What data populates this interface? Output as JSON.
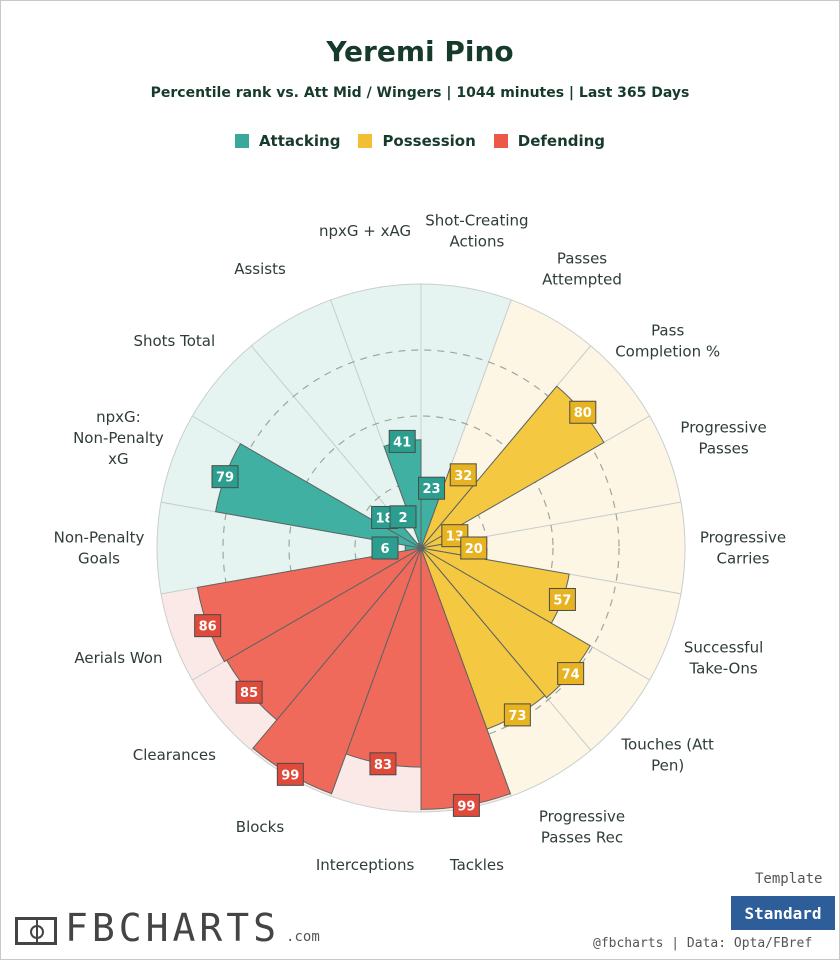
{
  "header": {
    "title": "Yeremi Pino",
    "subtitle": "Percentile rank vs. Att Mid / Wingers | 1044 minutes | Last 365 Days"
  },
  "legend": [
    {
      "label": "Attacking",
      "color": "#3aa99b"
    },
    {
      "label": "Possession",
      "color": "#f2bf33"
    },
    {
      "label": "Defending",
      "color": "#ee5648"
    }
  ],
  "chart_data": {
    "type": "polar-bar",
    "title": "Yeremi Pino",
    "rlim": [
      0,
      100
    ],
    "rings": [
      25,
      50,
      75
    ],
    "categories": [
      {
        "label": "Shot-Creating Actions",
        "value": 23,
        "group": "Attacking"
      },
      {
        "label": "Passes Attempted",
        "value": 32,
        "group": "Possession"
      },
      {
        "label": "Pass Completion %",
        "value": 80,
        "group": "Possession"
      },
      {
        "label": "Progressive Passes",
        "value": 13,
        "group": "Possession"
      },
      {
        "label": "Progressive Carries",
        "value": 20,
        "group": "Possession"
      },
      {
        "label": "Successful Take-Ons",
        "value": 57,
        "group": "Possession"
      },
      {
        "label": "Touches (Att Pen)",
        "value": 74,
        "group": "Possession"
      },
      {
        "label": "Progressive Passes Rec",
        "value": 73,
        "group": "Possession"
      },
      {
        "label": "Tackles",
        "value": 99,
        "group": "Defending"
      },
      {
        "label": "Interceptions",
        "value": 83,
        "group": "Defending"
      },
      {
        "label": "Blocks",
        "value": 99,
        "group": "Defending"
      },
      {
        "label": "Clearances",
        "value": 85,
        "group": "Defending"
      },
      {
        "label": "Aerials Won",
        "value": 86,
        "group": "Defending"
      },
      {
        "label": "Non-Penalty Goals",
        "value": 6,
        "group": "Attacking"
      },
      {
        "label": "npxG: Non-Penalty xG",
        "value": 79,
        "group": "Attacking"
      },
      {
        "label": "Shots Total",
        "value": 18,
        "group": "Attacking"
      },
      {
        "label": "Assists",
        "value": 2,
        "group": "Attacking"
      },
      {
        "label": "npxG + xAG",
        "value": 41,
        "group": "Attacking"
      }
    ],
    "group_colors": {
      "Attacking": {
        "bar": "#3fb0a2",
        "bg": "#e6f4f1",
        "badge": "#2b9e8f"
      },
      "Possession": {
        "bar": "#f5c842",
        "bg": "#fdf6e5",
        "badge": "#e7b321"
      },
      "Defending": {
        "bar": "#f06a5c",
        "bg": "#fbe9e8",
        "badge": "#df4a3b"
      }
    }
  },
  "footer": {
    "template_label": "Template",
    "template_button": "Standard",
    "credit": "@fbcharts  |  Data: Opta/FBref",
    "logo_text": "FBCHARTS",
    "logo_suffix": ".com"
  }
}
